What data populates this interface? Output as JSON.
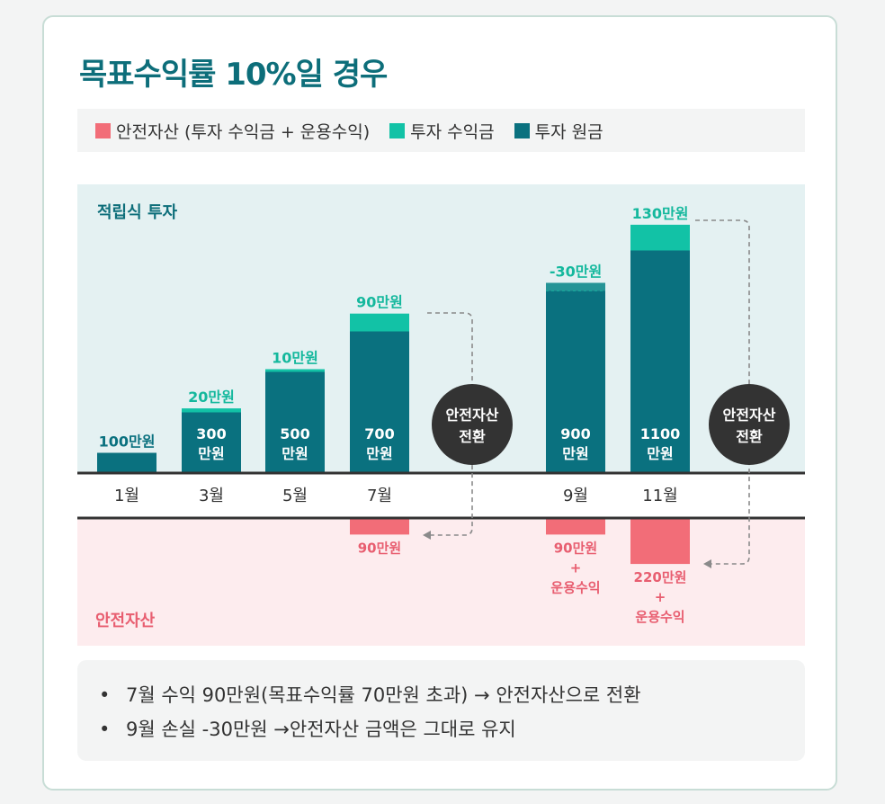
{
  "title": "목표수익률 10%일 경우",
  "legend": [
    {
      "label": "안전자산 (투자 수익금 + 운용수익)",
      "color": "#f26d78",
      "icon": "square-swatch"
    },
    {
      "label": "투자 수익금",
      "color": "#12c2a6",
      "icon": "square-swatch"
    },
    {
      "label": "투자 원금",
      "color": "#0a717f",
      "icon": "square-swatch"
    }
  ],
  "colors": {
    "principal": "#0a717f",
    "profit": "#12c2a6",
    "safe": "#f26d78",
    "safe_text": "#e85e70",
    "profit_text": "#14b89d",
    "top_bg": "#e4f1f2",
    "bottom_bg": "#fdecee",
    "circle": "#333333",
    "title": "#0d6e7a"
  },
  "chart_data": {
    "type": "bar",
    "stacked": true,
    "top_region_label": "적립식 투자",
    "bottom_region_label": "안전자산",
    "unit": "만원",
    "categories": [
      "1월",
      "3월",
      "5월",
      "7월",
      "9월",
      "11월"
    ],
    "series": [
      {
        "name": "투자 원금",
        "values": [
          100,
          300,
          500,
          700,
          900,
          1100
        ]
      },
      {
        "name": "투자 수익금",
        "values": [
          0,
          20,
          10,
          90,
          -30,
          130
        ]
      },
      {
        "name": "안전자산 (투자 수익금 + 운용수익)",
        "values": [
          0,
          0,
          0,
          90,
          90,
          220
        ]
      }
    ],
    "principal_labels": [
      "100만원",
      "300\n만원",
      "500\n만원",
      "700\n만원",
      "900\n만원",
      "1100\n만원"
    ],
    "profit_labels": [
      "",
      "20만원",
      "10만원",
      "90만원",
      "-30만원",
      "130만원"
    ],
    "safe_labels": [
      "",
      "",
      "",
      "90만원",
      "90만원\n+\n운용수익",
      "220만원\n+\n운용수익"
    ],
    "conversions": [
      {
        "label": "안전자산\n전환",
        "from": "7월",
        "after": "7월"
      },
      {
        "label": "안전자산\n전환",
        "from": "11월",
        "after": "11월"
      }
    ]
  },
  "notes": [
    "7월 수익 90만원(목표수익률 70만원 초과) → 안전자산으로 전환",
    "9월 손실 -30만원 →안전자산 금액은 그대로 유지"
  ]
}
